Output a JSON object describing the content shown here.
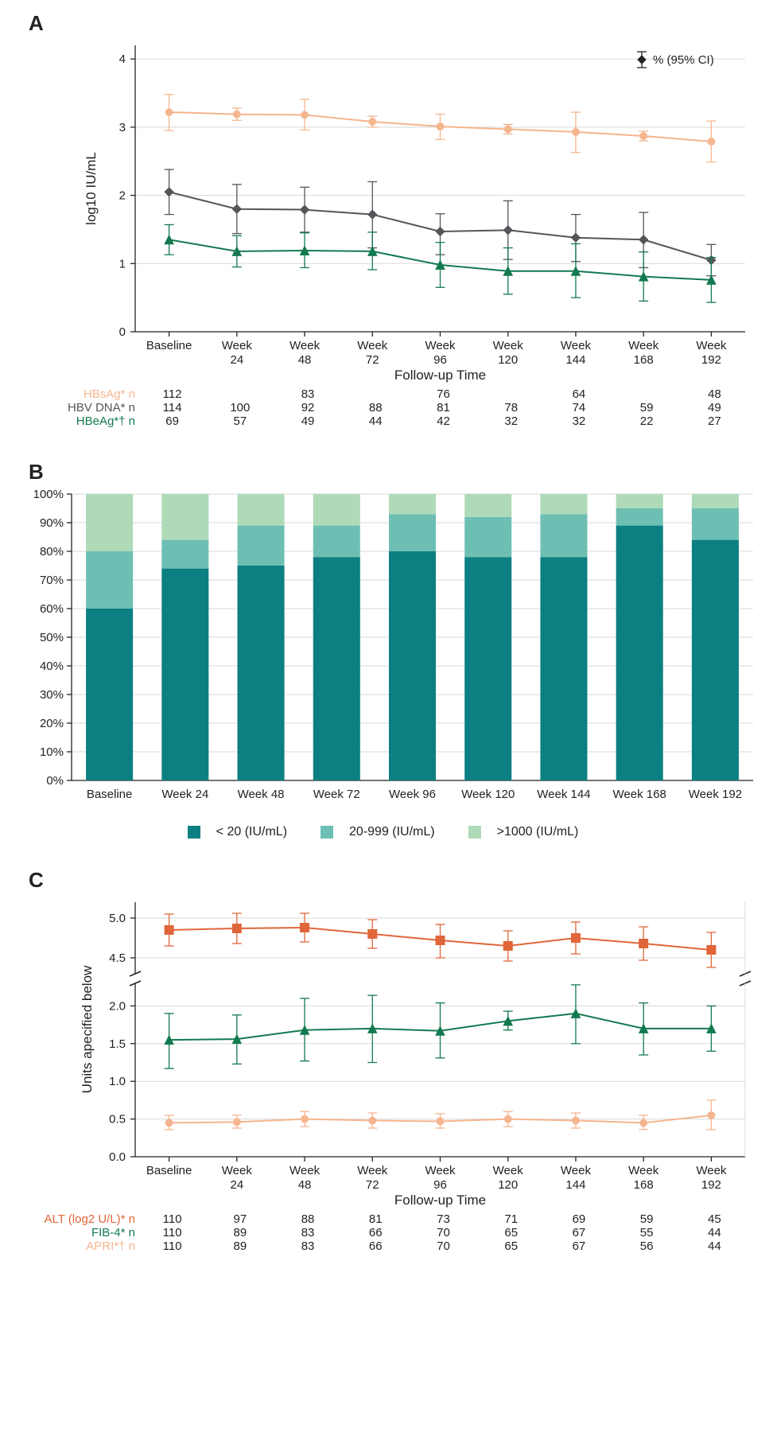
{
  "colors": {
    "hbsag": "#f5b58f",
    "hbvdna": "#55565a",
    "hbeag": "#137a4f",
    "bar_dark": "#0c7f82",
    "bar_mid": "#6dbfb3",
    "bar_light": "#aedab8",
    "alt": "#e0663a",
    "fib4": "#137a4f",
    "apri": "#f5b58f",
    "grid": "#d9d9d9",
    "text": "#222222"
  },
  "timepoints": [
    "Baseline",
    "Week 24",
    "Week 48",
    "Week 72",
    "Week 96",
    "Week 120",
    "Week 144",
    "Week 168",
    "Week 192"
  ],
  "timepoints_2line": [
    [
      "Baseline",
      ""
    ],
    [
      "Week",
      "24"
    ],
    [
      "Week",
      "48"
    ],
    [
      "Week",
      "72"
    ],
    [
      "Week",
      "96"
    ],
    [
      "Week",
      "120"
    ],
    [
      "Week",
      "144"
    ],
    [
      "Week",
      "168"
    ],
    [
      "Week",
      "192"
    ]
  ],
  "panelA": {
    "ylabel": "log10 IU/mL",
    "xlabel": "Follow-up Time",
    "ylim": [
      0,
      4.2
    ],
    "yticks": [
      0,
      1,
      2,
      3,
      4
    ],
    "legend_top": "% (95% CI)",
    "series": [
      {
        "key": "hbsag",
        "name": "HBsAg* n",
        "color": "#f5b58f",
        "marker": "circle",
        "y": [
          3.22,
          3.19,
          3.18,
          3.08,
          3.01,
          2.97,
          2.93,
          2.87,
          2.79
        ],
        "lo": [
          2.95,
          3.1,
          2.96,
          3.0,
          2.82,
          2.9,
          2.63,
          2.8,
          2.49
        ],
        "hi": [
          3.48,
          3.28,
          3.41,
          3.16,
          3.19,
          3.04,
          3.22,
          2.94,
          3.09
        ],
        "n": [
          112,
          null,
          83,
          null,
          76,
          null,
          64,
          null,
          48
        ]
      },
      {
        "key": "hbvdna",
        "name": "HBV DNA* n",
        "color": "#55565a",
        "marker": "diamond",
        "y": [
          2.05,
          1.8,
          1.79,
          1.72,
          1.47,
          1.49,
          1.38,
          1.35,
          1.05
        ],
        "lo": [
          1.72,
          1.44,
          1.46,
          1.23,
          1.13,
          1.06,
          1.03,
          0.94,
          0.82
        ],
        "hi": [
          2.38,
          2.16,
          2.12,
          2.2,
          1.73,
          1.92,
          1.72,
          1.75,
          1.28
        ],
        "n": [
          114,
          100,
          92,
          88,
          81,
          78,
          74,
          59,
          49
        ]
      },
      {
        "key": "hbeag",
        "name": "HBeAg*† n",
        "color": "#137a4f",
        "marker": "triangle",
        "y": [
          1.35,
          1.18,
          1.19,
          1.18,
          0.98,
          0.89,
          0.89,
          0.81,
          0.76
        ],
        "lo": [
          1.13,
          0.95,
          0.94,
          0.91,
          0.65,
          0.55,
          0.5,
          0.45,
          0.43
        ],
        "hi": [
          1.57,
          1.41,
          1.45,
          1.46,
          1.31,
          1.23,
          1.29,
          1.17,
          1.09
        ],
        "n": [
          69,
          57,
          49,
          44,
          42,
          32,
          32,
          22,
          27
        ]
      }
    ]
  },
  "panelB": {
    "yticks": [
      0,
      10,
      20,
      30,
      40,
      50,
      60,
      70,
      80,
      90,
      100
    ],
    "categories": [
      "< 20 (IU/mL)",
      "20-999 (IU/mL)",
      ">1000 (IU/mL)"
    ],
    "colors": [
      "#0c7f82",
      "#6dbfb3",
      "#aedab8"
    ],
    "stacks": [
      [
        60,
        20,
        20
      ],
      [
        74,
        10,
        16
      ],
      [
        75,
        14,
        11
      ],
      [
        78,
        11,
        11
      ],
      [
        80,
        13,
        7
      ],
      [
        78,
        14,
        8
      ],
      [
        78,
        15,
        7
      ],
      [
        89,
        6,
        5
      ],
      [
        84,
        11,
        5
      ]
    ]
  },
  "panelC": {
    "ylabel": "Units apecified below",
    "xlabel": "Follow-up Time",
    "lower_ylim": [
      0,
      2.3
    ],
    "lower_yticks": [
      0,
      0.5,
      1.0,
      1.5,
      2.0
    ],
    "upper_ylim": [
      4.3,
      5.2
    ],
    "upper_yticks": [
      4.5,
      5.0
    ],
    "series": [
      {
        "key": "alt",
        "name": "ALT (log2 U/L)* n",
        "color": "#e0663a",
        "marker": "square",
        "y": [
          4.85,
          4.87,
          4.88,
          4.8,
          4.72,
          4.65,
          4.75,
          4.68,
          4.6
        ],
        "lo": [
          4.65,
          4.68,
          4.7,
          4.62,
          4.5,
          4.46,
          4.55,
          4.47,
          4.38
        ],
        "hi": [
          5.05,
          5.06,
          5.06,
          4.98,
          4.92,
          4.84,
          4.95,
          4.89,
          4.82
        ],
        "n": [
          110,
          97,
          88,
          81,
          73,
          71,
          69,
          59,
          45
        ]
      },
      {
        "key": "fib4",
        "name": "FIB-4* n",
        "color": "#137a4f",
        "marker": "triangle",
        "y": [
          1.55,
          1.56,
          1.68,
          1.7,
          1.67,
          1.8,
          1.9,
          1.7,
          1.7
        ],
        "lo": [
          1.17,
          1.23,
          1.27,
          1.25,
          1.31,
          1.68,
          1.5,
          1.35,
          1.4
        ],
        "hi": [
          1.9,
          1.88,
          2.1,
          2.14,
          2.04,
          1.93,
          2.28,
          2.04,
          2.0
        ],
        "n": [
          110,
          89,
          83,
          66,
          70,
          65,
          67,
          55,
          44
        ]
      },
      {
        "key": "apri",
        "name": "APRI*† n",
        "color": "#f5b58f",
        "marker": "circle",
        "y": [
          0.45,
          0.46,
          0.5,
          0.48,
          0.47,
          0.5,
          0.48,
          0.45,
          0.55
        ],
        "lo": [
          0.36,
          0.38,
          0.4,
          0.38,
          0.38,
          0.4,
          0.38,
          0.36,
          0.36
        ],
        "hi": [
          0.55,
          0.55,
          0.6,
          0.58,
          0.57,
          0.6,
          0.58,
          0.55,
          0.75
        ],
        "n": [
          110,
          89,
          83,
          66,
          70,
          65,
          67,
          56,
          44
        ]
      }
    ]
  }
}
